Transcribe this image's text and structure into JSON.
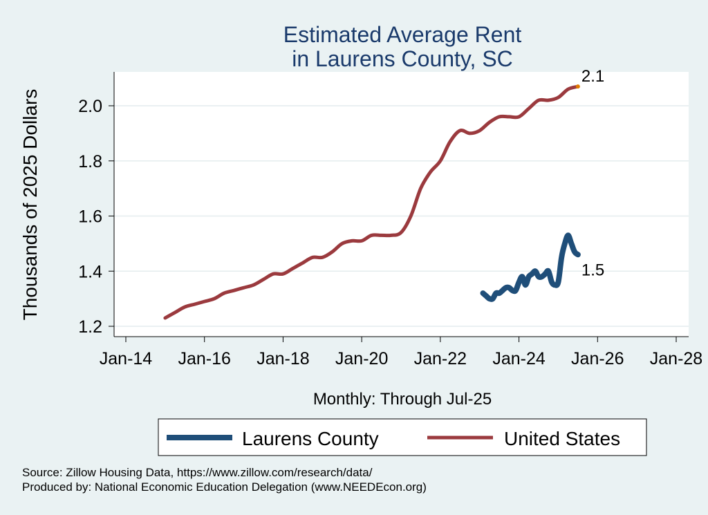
{
  "chart_data": {
    "type": "line",
    "title_lines": [
      "Estimated Average Rent",
      "in Laurens County, SC"
    ],
    "xlabel": "Monthly: Through Jul-25",
    "ylabel": "Thousands of 2025 Dollars",
    "x_ticks": [
      "Jan-14",
      "Jan-16",
      "Jan-18",
      "Jan-20",
      "Jan-22",
      "Jan-24",
      "Jan-26",
      "Jan-28"
    ],
    "y_ticks": [
      "1.2",
      "1.4",
      "1.6",
      "1.8",
      "2.0"
    ],
    "ylim": [
      1.2,
      2.1
    ],
    "xlim": [
      "2014-01",
      "2028-01"
    ],
    "grid": true,
    "legend_position": "bottom",
    "series": [
      {
        "name": "Laurens County",
        "color": "#1f4e79",
        "end_label": "1.5",
        "points": [
          [
            "2023-02",
            1.32
          ],
          [
            "2023-03",
            1.31
          ],
          [
            "2023-04",
            1.3
          ],
          [
            "2023-05",
            1.3
          ],
          [
            "2023-06",
            1.32
          ],
          [
            "2023-07",
            1.32
          ],
          [
            "2023-08",
            1.33
          ],
          [
            "2023-09",
            1.34
          ],
          [
            "2023-10",
            1.34
          ],
          [
            "2023-11",
            1.33
          ],
          [
            "2023-12",
            1.33
          ],
          [
            "2024-01",
            1.36
          ],
          [
            "2024-02",
            1.38
          ],
          [
            "2024-03",
            1.35
          ],
          [
            "2024-04",
            1.38
          ],
          [
            "2024-05",
            1.39
          ],
          [
            "2024-06",
            1.4
          ],
          [
            "2024-07",
            1.38
          ],
          [
            "2024-08",
            1.38
          ],
          [
            "2024-09",
            1.39
          ],
          [
            "2024-10",
            1.4
          ],
          [
            "2024-11",
            1.36
          ],
          [
            "2024-12",
            1.35
          ],
          [
            "2025-01",
            1.36
          ],
          [
            "2025-02",
            1.45
          ],
          [
            "2025-03",
            1.5
          ],
          [
            "2025-04",
            1.53
          ],
          [
            "2025-05",
            1.5
          ],
          [
            "2025-06",
            1.47
          ],
          [
            "2025-07",
            1.46
          ]
        ]
      },
      {
        "name": "United States",
        "color": "#9b3a3e",
        "end_label": "2.1",
        "points": [
          [
            "2015-01",
            1.23
          ],
          [
            "2015-04",
            1.25
          ],
          [
            "2015-07",
            1.27
          ],
          [
            "2015-10",
            1.28
          ],
          [
            "2016-01",
            1.29
          ],
          [
            "2016-04",
            1.3
          ],
          [
            "2016-07",
            1.32
          ],
          [
            "2016-10",
            1.33
          ],
          [
            "2017-01",
            1.34
          ],
          [
            "2017-04",
            1.35
          ],
          [
            "2017-07",
            1.37
          ],
          [
            "2017-10",
            1.39
          ],
          [
            "2018-01",
            1.39
          ],
          [
            "2018-04",
            1.41
          ],
          [
            "2018-07",
            1.43
          ],
          [
            "2018-10",
            1.45
          ],
          [
            "2019-01",
            1.45
          ],
          [
            "2019-04",
            1.47
          ],
          [
            "2019-07",
            1.5
          ],
          [
            "2019-10",
            1.51
          ],
          [
            "2020-01",
            1.51
          ],
          [
            "2020-04",
            1.53
          ],
          [
            "2020-07",
            1.53
          ],
          [
            "2020-10",
            1.53
          ],
          [
            "2021-01",
            1.54
          ],
          [
            "2021-04",
            1.6
          ],
          [
            "2021-07",
            1.7
          ],
          [
            "2021-10",
            1.76
          ],
          [
            "2022-01",
            1.8
          ],
          [
            "2022-04",
            1.87
          ],
          [
            "2022-07",
            1.91
          ],
          [
            "2022-10",
            1.9
          ],
          [
            "2023-01",
            1.91
          ],
          [
            "2023-04",
            1.94
          ],
          [
            "2023-07",
            1.96
          ],
          [
            "2023-10",
            1.96
          ],
          [
            "2024-01",
            1.96
          ],
          [
            "2024-04",
            1.99
          ],
          [
            "2024-07",
            2.02
          ],
          [
            "2024-10",
            2.02
          ],
          [
            "2025-01",
            2.03
          ],
          [
            "2025-04",
            2.06
          ],
          [
            "2025-07",
            2.07
          ]
        ]
      }
    ],
    "notes": [
      "Source: Zillow Housing Data, https://www.zillow.com/research/data/",
      "Produced by: National Economic Education Delegation (www.NEEDEcon.org)"
    ]
  }
}
